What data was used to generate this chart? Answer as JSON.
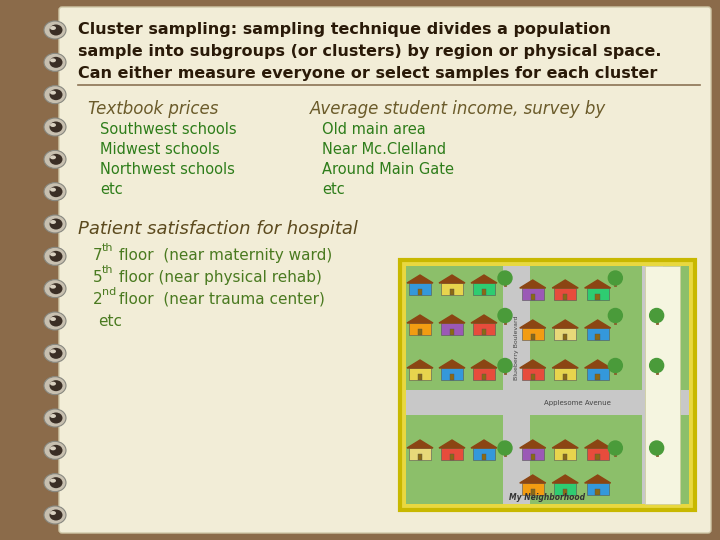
{
  "background_outer": "#8B6B4A",
  "background_inner": "#F2EDD7",
  "title_line1": "Cluster sampling: sampling technique divides a population",
  "title_line2": "sample into subgroups (or clusters) by region or physical space.",
  "title_line3": "Can either measure everyone or select samples for each cluster",
  "title_color": "#2A1A08",
  "title_fontsize": 11.5,
  "divider_color": "#8B7355",
  "section1_heading": "Textbook prices",
  "section1_items": [
    "Southwest schools",
    "Midwest schools",
    "Northwest schools",
    "etc"
  ],
  "section2_heading": "Average student income, survey by",
  "section2_items": [
    "Old main area",
    "Near Mc.Clelland",
    "Around Main Gate",
    "etc"
  ],
  "section3_heading": "Patient satisfaction for hospital",
  "section3_items": [
    {
      "num": "7",
      "sup": "th",
      "rest": " floor  (near maternity ward)"
    },
    {
      "num": "5",
      "sup": "th",
      "rest": " floor (near physical rehab)"
    },
    {
      "num": "2",
      "sup": "nd",
      "rest": " floor  (near trauma center)"
    },
    {
      "num": "etc",
      "sup": "",
      "rest": ""
    }
  ],
  "heading_color": "#6B5B2A",
  "item_color": "#2E7D1A",
  "heading_fontsize": 12,
  "item_fontsize": 10.5,
  "section3_heading_color": "#5C4A1E",
  "section3_heading_fontsize": 13,
  "section3_item_color": "#4A7A20",
  "section3_item_fontsize": 11,
  "spiral_outer": "#9E8870",
  "spiral_inner": "#5A4535",
  "spiral_highlight": "#C8B89A"
}
